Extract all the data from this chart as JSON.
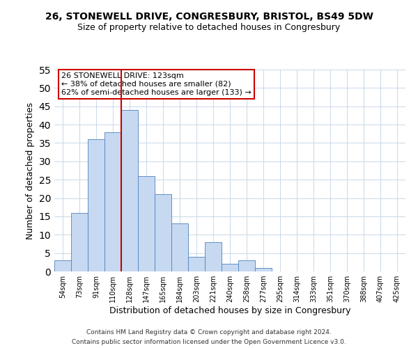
{
  "title": "26, STONEWELL DRIVE, CONGRESBURY, BRISTOL, BS49 5DW",
  "subtitle": "Size of property relative to detached houses in Congresbury",
  "xlabel": "Distribution of detached houses by size in Congresbury",
  "ylabel": "Number of detached properties",
  "bar_labels": [
    "54sqm",
    "73sqm",
    "91sqm",
    "110sqm",
    "128sqm",
    "147sqm",
    "165sqm",
    "184sqm",
    "203sqm",
    "221sqm",
    "240sqm",
    "258sqm",
    "277sqm",
    "295sqm",
    "314sqm",
    "333sqm",
    "351sqm",
    "370sqm",
    "388sqm",
    "407sqm",
    "425sqm"
  ],
  "bar_values": [
    3,
    16,
    36,
    38,
    44,
    26,
    21,
    13,
    4,
    8,
    2,
    3,
    1,
    0,
    0,
    0,
    0,
    0,
    0,
    0,
    0
  ],
  "bar_color": "#c6d9f1",
  "bar_edge_color": "#4f81bd",
  "highlight_bar_index": 4,
  "highlight_color": "#cc0000",
  "ylim": [
    0,
    55
  ],
  "yticks": [
    0,
    5,
    10,
    15,
    20,
    25,
    30,
    35,
    40,
    45,
    50,
    55
  ],
  "annotation_title": "26 STONEWELL DRIVE: 123sqm",
  "annotation_line1": "← 38% of detached houses are smaller (82)",
  "annotation_line2": "62% of semi-detached houses are larger (133) →",
  "annotation_box_color": "#ffffff",
  "annotation_box_edge": "#cc0000",
  "footer1": "Contains HM Land Registry data © Crown copyright and database right 2024.",
  "footer2": "Contains public sector information licensed under the Open Government Licence v3.0.",
  "background_color": "#ffffff",
  "grid_color": "#c8d8e8"
}
